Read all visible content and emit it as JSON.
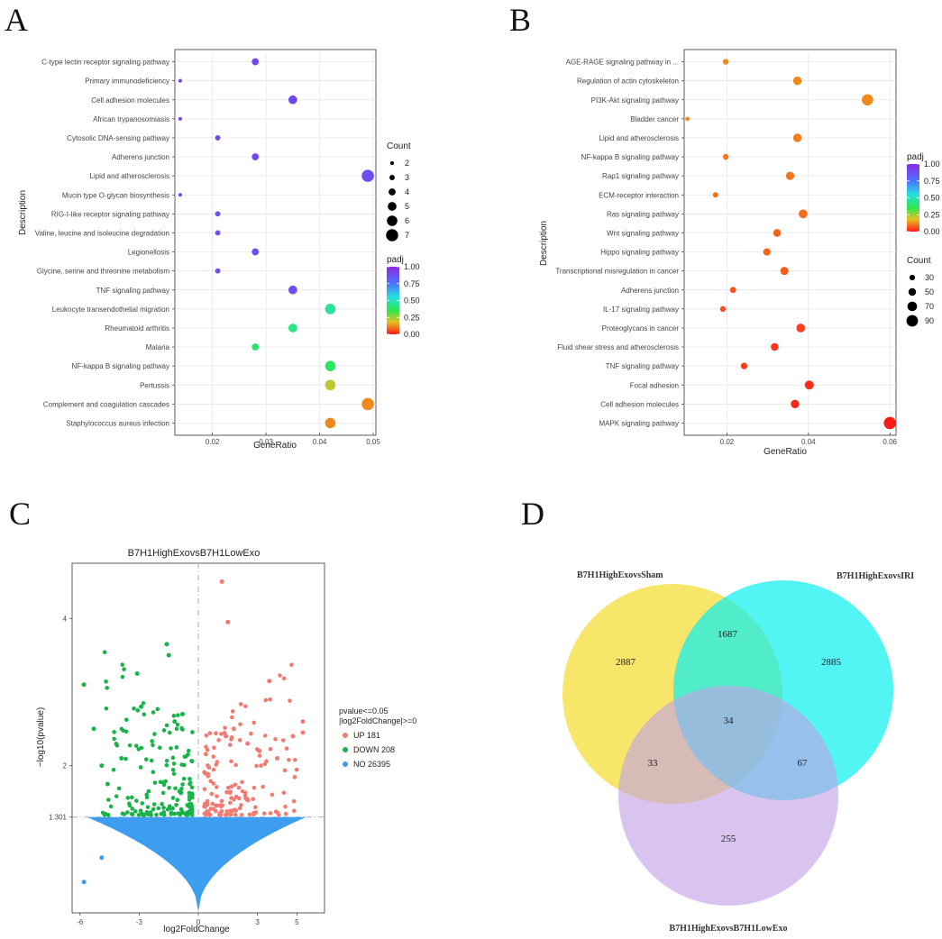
{
  "panel_labels": {
    "A": "A",
    "B": "B",
    "C": "C",
    "D": "D"
  },
  "chart_data": [
    {
      "panel": "A",
      "type": "scatter",
      "xlabel": "GeneRatio",
      "ylabel": "Description",
      "xlim": [
        0.013,
        0.0505
      ],
      "xticks": [
        0.02,
        0.03,
        0.04,
        0.05
      ],
      "xticklabels": [
        "0.02",
        "0.03",
        "0.04",
        "0.05"
      ],
      "categories": [
        "C-type lectin receptor signaling pathway",
        "Primary immunodeficiency",
        "Cell adhesion molecules",
        "African trypanosomiasis",
        "Cytosolic DNA-sensing pathway",
        "Adherens junction",
        "Lipid and atherosclerosis",
        "Mucin type O-glycan biosynthesis",
        "RIG-I-like receptor signaling pathway",
        "Valine, leucine and isoleucine degradation",
        "Legionellosis",
        "Glycine, serine and threonine metabolism",
        "TNF signaling pathway",
        "Leukocyte transendothelial migration",
        "Rheumatoid arthritis",
        "Malaria",
        "NF-kappa B signaling pathway",
        "Pertussis",
        "Complement and coagulation cascades",
        "Staphylococcus aureus infection"
      ],
      "gene_ratio": [
        0.028,
        0.014,
        0.035,
        0.014,
        0.021,
        0.028,
        0.049,
        0.014,
        0.021,
        0.021,
        0.028,
        0.021,
        0.035,
        0.042,
        0.035,
        0.028,
        0.042,
        0.042,
        0.049,
        0.042
      ],
      "count": [
        4,
        2,
        5,
        2,
        3,
        4,
        7,
        2,
        3,
        3,
        4,
        3,
        5,
        6,
        5,
        4,
        6,
        6,
        7,
        6
      ],
      "padj": [
        0.9,
        0.92,
        0.9,
        0.92,
        0.9,
        0.9,
        0.88,
        0.92,
        0.88,
        0.88,
        0.88,
        0.88,
        0.88,
        0.45,
        0.42,
        0.4,
        0.38,
        0.22,
        0.12,
        0.12
      ],
      "count_legend": {
        "title": "Count",
        "values": [
          2,
          3,
          4,
          5,
          6,
          7
        ],
        "labels": [
          "2",
          "3",
          "4",
          "5",
          "6",
          "7"
        ]
      },
      "color_legend": {
        "title": "padj",
        "labels": [
          "1.00",
          "0.75",
          "0.50",
          "0.25",
          "0.00"
        ],
        "values": [
          1.0,
          0.75,
          0.5,
          0.25,
          0.0
        ]
      }
    },
    {
      "panel": "B",
      "type": "scatter",
      "xlabel": "GeneRatio",
      "ylabel": "Description",
      "xlim": [
        0.0095,
        0.0615
      ],
      "xticks": [
        0.02,
        0.04,
        0.06
      ],
      "xticklabels": [
        "0.02",
        "0.04",
        "0.06"
      ],
      "categories": [
        "AGE-RAGE signaling pathway in ...",
        "Regulation of actin cytoskeleton",
        "PI3K-Akt signaling pathway",
        "Bladder cancer",
        "Lipid and atherosclerosis",
        "NF-kappa B signaling pathway",
        "Rap1 signaling pathway",
        "ECM-receptor interaction",
        "Ras signaling pathway",
        "Wnt signaling pathway",
        "Hippo signaling pathway",
        "Transcriptional misregulation in cancer",
        "Adherens junction",
        "IL-17 signaling pathway",
        "Proteoglycans in cancer",
        "Fluid shear stress and atherosclerosis",
        "TNF signaling pathway",
        "Focal adhesion",
        "Cell adhesion molecules",
        "MAPK signaling pathway"
      ],
      "gene_ratio": [
        0.0197,
        0.0373,
        0.0545,
        0.0103,
        0.0373,
        0.0197,
        0.0355,
        0.0172,
        0.0387,
        0.0323,
        0.0298,
        0.0341,
        0.0215,
        0.019,
        0.0381,
        0.0317,
        0.0242,
        0.0402,
        0.0367,
        0.06
      ],
      "count": [
        32,
        60,
        88,
        17,
        60,
        32,
        57,
        28,
        62,
        52,
        48,
        55,
        35,
        31,
        61,
        51,
        39,
        65,
        59,
        97
      ],
      "padj": [
        0.12,
        0.12,
        0.12,
        0.12,
        0.11,
        0.1,
        0.1,
        0.09,
        0.09,
        0.08,
        0.08,
        0.07,
        0.06,
        0.05,
        0.04,
        0.03,
        0.03,
        0.02,
        0.01,
        0.0
      ],
      "count_legend": {
        "title": "Count",
        "values": [
          30,
          50,
          70,
          90
        ],
        "labels": [
          "30",
          "50",
          "70",
          "90"
        ]
      },
      "color_legend": {
        "title": "padj",
        "labels": [
          "1.00",
          "0.75",
          "0.50",
          "0.25",
          "0.00"
        ],
        "values": [
          1.0,
          0.75,
          0.5,
          0.25,
          0.0
        ]
      }
    },
    {
      "panel": "C",
      "type": "scatter",
      "title": "B7H1HighExovsB7H1LowExo",
      "xlabel": "log2FoldChange",
      "ylabel": "−log10(pvalue)",
      "xlim": [
        -6.4,
        6.4
      ],
      "ylim": [
        0,
        4.75
      ],
      "xticks": [
        -6,
        -3,
        0,
        3,
        5
      ],
      "xticklabels": [
        "-6",
        "-3",
        "0",
        "3",
        "5"
      ],
      "yticks": [
        1.301,
        2,
        4
      ],
      "yticklabels": [
        "1.301",
        "2",
        "4"
      ],
      "threshold_y": 1.301,
      "legend": {
        "title_line1": "pvalue<=0.05",
        "title_line2": "|log2FoldChange|>=0",
        "entries": [
          {
            "label": "UP 181",
            "color": "#f07b72"
          },
          {
            "label": "DOWN 208",
            "color": "#1ab34a"
          },
          {
            "label": "NO 26395",
            "color": "#3d9ef0"
          }
        ]
      },
      "highlight_points": {
        "up": [
          [
            1.2,
            4.5
          ],
          [
            1.5,
            3.95
          ],
          [
            3.6,
            3.15
          ],
          [
            5.3,
            2.6
          ],
          [
            5.3,
            2.45
          ],
          [
            4.8,
            2.4
          ],
          [
            4.0,
            2.1
          ],
          [
            3.1,
            2.2
          ],
          [
            2.5,
            2.3
          ],
          [
            1.8,
            2.5
          ],
          [
            1.4,
            2.4
          ]
        ],
        "down": [
          [
            -1.6,
            3.65
          ],
          [
            -1.5,
            3.5
          ],
          [
            -3.1,
            3.25
          ],
          [
            -5.8,
            3.1
          ],
          [
            -2.9,
            2.8
          ],
          [
            -5.3,
            2.5
          ],
          [
            -4.9,
            2.0
          ],
          [
            -4.6,
            1.75
          ],
          [
            -3.9,
            2.1
          ],
          [
            -1.2,
            2.6
          ],
          [
            -0.8,
            2.7
          ]
        ],
        "no": [
          [
            -5.8,
            0.42
          ],
          [
            -4.9,
            0.75
          ]
        ]
      }
    }
  ],
  "venn": {
    "set_labels": [
      "B7H1HighExovsSham",
      "B7H1HighExovsIRI",
      "B7H1HighExovsB7H1LowExo"
    ],
    "colors": [
      "#f7e04a",
      "#10f0f0",
      "#c2a0e6"
    ],
    "values": {
      "a_only": "2887",
      "b_only": "2885",
      "c_only": "255",
      "ab": "1687",
      "ac": "33",
      "bc": "67",
      "abc": "34"
    }
  }
}
